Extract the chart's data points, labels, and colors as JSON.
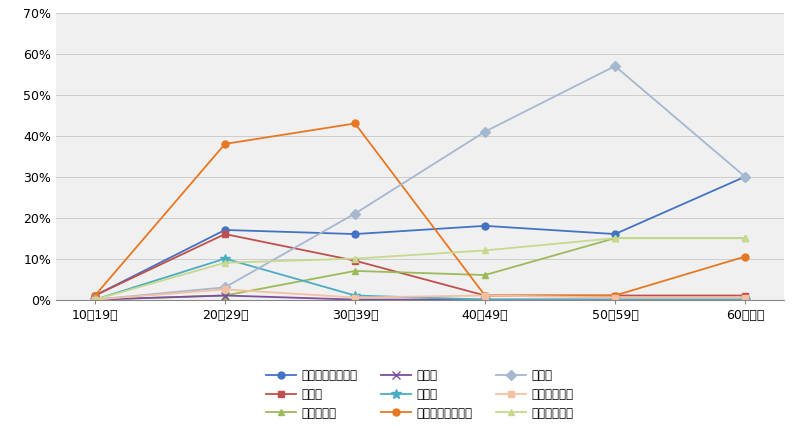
{
  "categories": [
    "10～19歳",
    "20～29歳",
    "30～39歳",
    "40～49歳",
    "50～59歳",
    "60歳以上"
  ],
  "series": [
    {
      "label": "就職・転職・転業",
      "values": [
        1,
        17,
        16,
        18,
        16,
        30
      ],
      "color": "#4472C4",
      "marker": "o",
      "markersize": 5
    },
    {
      "label": "転　動",
      "values": [
        1,
        16,
        9.5,
        1,
        1,
        1
      ],
      "color": "#C0504D",
      "marker": "s",
      "markersize": 5
    },
    {
      "label": "退職・廃業",
      "values": [
        0,
        1,
        7,
        6,
        15,
        15
      ],
      "color": "#9BBB59",
      "marker": "^",
      "markersize": 5
    },
    {
      "label": "就　学",
      "values": [
        0,
        1,
        0,
        0,
        0,
        0
      ],
      "color": "#7B4EA0",
      "marker": "x",
      "markersize": 6
    },
    {
      "label": "卒　業",
      "values": [
        0,
        10,
        1,
        0,
        0,
        0
      ],
      "color": "#4BACC6",
      "marker": "*",
      "markersize": 7
    },
    {
      "label": "結婚・離婚・縁組",
      "values": [
        1,
        38,
        43,
        1,
        1,
        10.5
      ],
      "color": "#E87722",
      "marker": "o",
      "markersize": 5
    },
    {
      "label": "住　宅",
      "values": [
        0,
        3,
        21,
        41,
        57,
        30
      ],
      "color": "#A5B8D0",
      "marker": "D",
      "markersize": 5
    },
    {
      "label": "交通の利便性",
      "values": [
        0,
        2.5,
        0.5,
        1,
        0.5,
        0.5
      ],
      "color": "#F4C0A0",
      "marker": "s",
      "markersize": 4
    },
    {
      "label": "生活の利便性",
      "values": [
        0,
        9,
        10,
        12,
        15,
        15
      ],
      "color": "#C6D98F",
      "marker": "^",
      "markersize": 5
    }
  ],
  "ylim": [
    0,
    70
  ],
  "yticks": [
    0,
    10,
    20,
    30,
    40,
    50,
    60,
    70
  ],
  "ytick_labels": [
    "0%",
    "10%",
    "20%",
    "30%",
    "40%",
    "50%",
    "60%",
    "70%"
  ],
  "figsize": [
    8.0,
    4.28
  ],
  "dpi": 100,
  "legend_ncol": 3,
  "bg_color": "#FFFFFF",
  "plot_bg_color": "#F0F0F0",
  "grid_color": "#CCCCCC"
}
